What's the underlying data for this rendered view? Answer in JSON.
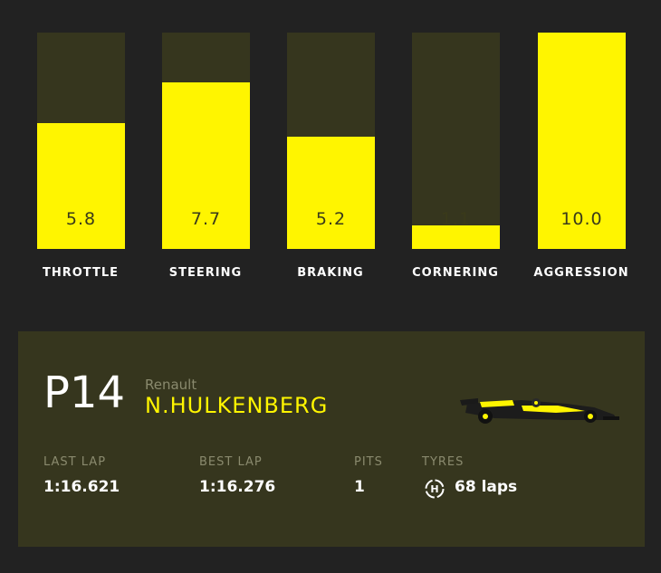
{
  "telemetry": [
    {
      "label": "THROTTLE",
      "value": "5.8",
      "fill": 0.58
    },
    {
      "label": "STEERING",
      "value": "7.7",
      "fill": 0.77
    },
    {
      "label": "BRAKING",
      "value": "5.2",
      "fill": 0.52
    },
    {
      "label": "CORNERING",
      "value": "1.1",
      "fill": 0.11
    },
    {
      "label": "AGGRESSION",
      "value": "10.0",
      "fill": 1.0
    }
  ],
  "driver": {
    "position": "P14",
    "team": "Renault",
    "name": "N.HULKENBERG"
  },
  "stats": {
    "last_lap_label": "LAST LAP",
    "last_lap_value": "1:16.621",
    "best_lap_label": "BEST LAP",
    "best_lap_value": "1:16.276",
    "pits_label": "PITS",
    "pits_value": "1",
    "tyres_label": "TYRES",
    "tyres_value": "68 laps",
    "tyre_compound": "H"
  },
  "colors": {
    "accent": "#fff500",
    "panel": "#36361e",
    "background": "#222222"
  },
  "icons": {
    "tyre": "tyre-hard-icon",
    "car": "renault-car-icon"
  }
}
